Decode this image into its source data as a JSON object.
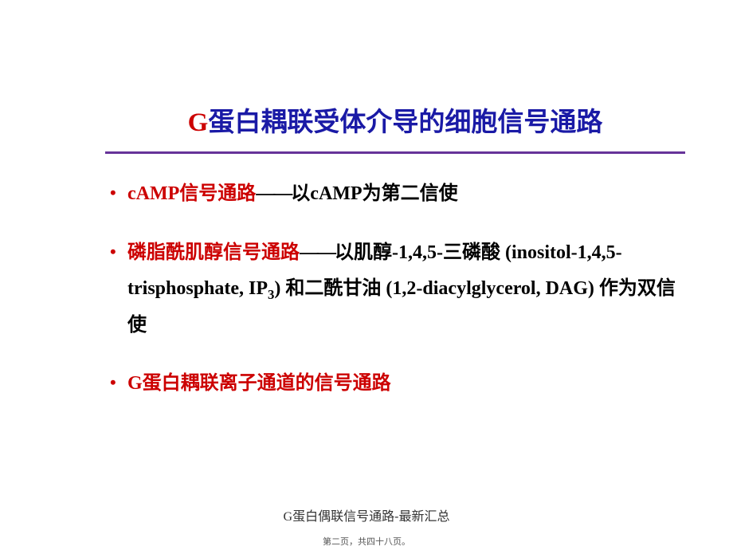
{
  "slide": {
    "title_g": "G",
    "title_rest": "蛋白耦联受体介导的细胞信号通路",
    "bullet1_red_en": "cAMP",
    "bullet1_red_zh": "信号通路",
    "bullet1_black_dash": "——",
    "bullet1_black_zh1": "以",
    "bullet1_black_en": "cAMP",
    "bullet1_black_zh2": "为第二信使",
    "bullet2_red": "磷脂酰肌醇信号通路",
    "bullet2_dash": "——",
    "bullet2_zh1": "以肌醇",
    "bullet2_num1": "-1,4,5-",
    "bullet2_zh2": "三磷酸 ",
    "bullet2_paren1_a": "(inositol-1,4,5-trisphosphate, IP",
    "bullet2_paren1_sub": "3",
    "bullet2_paren1_b": ")",
    "bullet2_zh3": " 和二酰甘油 ",
    "bullet2_paren2": "(1,2-diacylglycerol, DAG)",
    "bullet2_zh4": " 作为双信使",
    "bullet3_red_g": "G",
    "bullet3_red_zh": "蛋白耦联离子通道的信号通路"
  },
  "caption_g": "G",
  "caption_text": "蛋白偶联信号通路-最新汇总",
  "page_num": "第二页，共四十八页。"
}
